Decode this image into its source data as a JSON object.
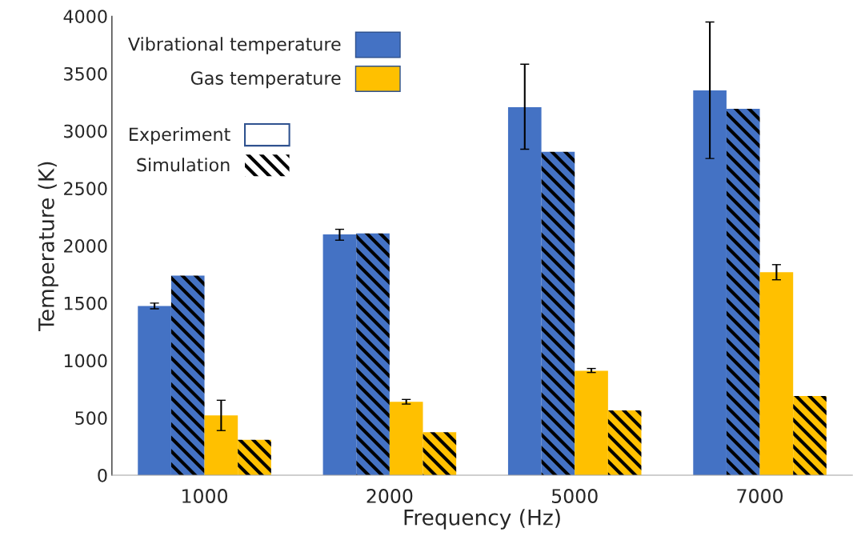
{
  "chart_data": {
    "type": "bar",
    "xlabel": "Frequency (Hz)",
    "ylabel": "Temperature (K)",
    "categories": [
      "1000",
      "2000",
      "5000",
      "7000"
    ],
    "series": [
      {
        "name": "Vibrational temperature",
        "color": "#4472c4",
        "values": [
          1475,
          2099,
          3207,
          3354
        ],
        "errors": [
          [
            1450,
            1500
          ],
          [
            2048,
            2143
          ],
          [
            2841,
            3582
          ],
          [
            2760,
            3949
          ]
        ]
      },
      {
        "color": "#4472c4",
        "values": [
          1740,
          2107,
          2818,
          3193
        ]
      },
      {
        "name": "Gas temperature",
        "color": "#ffc000",
        "values": [
          521,
          639,
          910,
          1769
        ],
        "errors": [
          [
            389,
            653
          ],
          [
            620,
            660
          ],
          [
            895,
            930
          ],
          [
            1703,
            1835
          ]
        ]
      },
      {
        "color": "#ffc000",
        "values": [
          308,
          374,
          565,
          690
        ]
      }
    ],
    "annotations": [
      "Experiment",
      "Simulation"
    ],
    "ylim": [
      0,
      4000
    ],
    "yticks": [
      0,
      500,
      1000,
      1500,
      2000,
      2500,
      3000,
      3500,
      4000
    ],
    "grid": false,
    "legend": "top left"
  }
}
